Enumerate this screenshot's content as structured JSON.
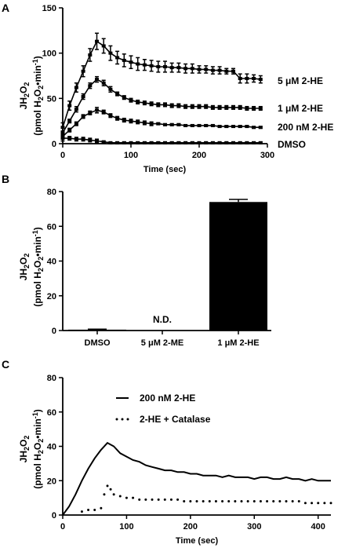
{
  "panels": {
    "A": {
      "letter": "A",
      "ylabel_line1": "JH2O2",
      "ylabel_line2": "(pmol H2O2•min-1)",
      "xlabel": "Time (sec)"
    },
    "B": {
      "letter": "B",
      "ylabel_line1": "JH2O2",
      "ylabel_line2": "(pmol H2O2•min-1)",
      "nd_label": "N.D."
    },
    "C": {
      "letter": "C",
      "ylabel_line1": "JH2O2",
      "ylabel_line2": "(pmol H2O2•min-1)",
      "xlabel": "Time (sec)"
    }
  },
  "chart_data": [
    {
      "panel": "A",
      "type": "line",
      "xlabel": "Time (sec)",
      "ylabel": "JH2O2 (pmol H2O2•min-1)",
      "xlim": [
        0,
        300
      ],
      "ylim": [
        0,
        150
      ],
      "xticks": [
        0,
        100,
        200,
        300
      ],
      "yticks": [
        0,
        50,
        100,
        150
      ],
      "x": [
        0,
        10,
        20,
        30,
        40,
        50,
        60,
        70,
        80,
        90,
        100,
        110,
        120,
        130,
        140,
        150,
        160,
        170,
        180,
        190,
        200,
        210,
        220,
        230,
        240,
        250,
        260,
        270,
        280,
        290
      ],
      "series": [
        {
          "name": "5 μM 2-HE",
          "values": [
            18,
            42,
            62,
            80,
            98,
            113,
            108,
            100,
            95,
            92,
            90,
            88,
            87,
            86,
            85,
            85,
            84,
            84,
            83,
            83,
            82,
            82,
            81,
            81,
            80,
            80,
            72,
            72,
            72,
            71
          ],
          "errors": [
            5,
            5,
            5,
            6,
            7,
            9,
            8,
            8,
            7,
            7,
            7,
            7,
            6,
            6,
            6,
            6,
            5,
            5,
            5,
            5,
            4,
            4,
            4,
            4,
            3,
            3,
            5,
            5,
            4,
            4
          ]
        },
        {
          "name": "1 μM 2-HE",
          "values": [
            12,
            25,
            38,
            52,
            64,
            71,
            67,
            60,
            55,
            51,
            48,
            46,
            45,
            44,
            43,
            43,
            42,
            42,
            41,
            41,
            41,
            41,
            40,
            40,
            40,
            40,
            40,
            39,
            39,
            39
          ],
          "errors": [
            2,
            2,
            3,
            3,
            3,
            3,
            3,
            3,
            2,
            2,
            2,
            2,
            2,
            2,
            2,
            2,
            2,
            2,
            2,
            2,
            2,
            2,
            2,
            2,
            2,
            2,
            2,
            2,
            2,
            2
          ]
        },
        {
          "name": "200 nM 2-HE",
          "values": [
            8,
            15,
            22,
            30,
            34,
            37,
            35,
            31,
            28,
            26,
            25,
            24,
            23,
            22,
            22,
            21,
            21,
            21,
            20,
            20,
            20,
            20,
            20,
            19,
            19,
            19,
            19,
            19,
            18,
            18
          ],
          "errors": [
            2,
            2,
            2,
            2,
            2,
            3,
            2,
            2,
            2,
            2,
            2,
            2,
            2,
            2,
            1,
            1,
            1,
            1,
            1,
            1,
            1,
            1,
            1,
            1,
            1,
            1,
            1,
            1,
            1,
            1
          ]
        },
        {
          "name": "DMSO",
          "values": [
            6,
            6,
            5,
            5,
            4,
            3,
            2,
            1,
            1,
            1,
            1,
            1,
            1,
            1,
            1,
            1,
            1,
            1,
            1,
            1,
            1,
            1,
            1,
            1,
            1,
            1,
            1,
            1,
            1,
            1
          ],
          "errors": [
            3,
            2,
            2,
            2,
            2,
            2,
            1,
            1,
            1,
            1,
            1,
            1,
            1,
            1,
            1,
            1,
            1,
            1,
            1,
            1,
            1,
            1,
            1,
            1,
            1,
            1,
            1,
            1,
            1,
            1
          ]
        }
      ]
    },
    {
      "panel": "B",
      "type": "bar",
      "ylabel": "JH2O2 (pmol H2O2•min-1)",
      "ylim": [
        0,
        80
      ],
      "yticks": [
        0,
        20,
        40,
        60,
        80
      ],
      "categories": [
        "DMSO",
        "5 μM 2-ME",
        "1 μM 2-HE"
      ],
      "values": [
        0.5,
        0,
        74
      ],
      "errors": [
        0.3,
        0,
        1.5
      ],
      "annotations": [
        "",
        "N.D.",
        ""
      ]
    },
    {
      "panel": "C",
      "type": "line",
      "xlabel": "Time (sec)",
      "ylabel": "JH2O2 (pmol H2O2•min-1)",
      "xlim": [
        0,
        420
      ],
      "ylim": [
        0,
        80
      ],
      "xticks": [
        0,
        100,
        200,
        300,
        400
      ],
      "yticks": [
        0,
        20,
        40,
        60,
        80
      ],
      "legend": "top-right",
      "series": [
        {
          "name": "200 nM 2-HE",
          "style": "solid",
          "x": [
            0,
            10,
            20,
            30,
            40,
            50,
            60,
            70,
            80,
            90,
            100,
            110,
            120,
            130,
            140,
            150,
            160,
            170,
            180,
            190,
            200,
            210,
            220,
            230,
            240,
            250,
            260,
            270,
            280,
            290,
            300,
            310,
            320,
            330,
            340,
            350,
            360,
            370,
            380,
            390,
            400,
            410,
            420
          ],
          "values": [
            0,
            5,
            12,
            20,
            27,
            33,
            38,
            42,
            40,
            36,
            34,
            32,
            31,
            29,
            28,
            27,
            26,
            26,
            25,
            25,
            24,
            24,
            23,
            23,
            23,
            22,
            23,
            22,
            22,
            22,
            21,
            22,
            22,
            21,
            21,
            22,
            21,
            21,
            20,
            21,
            20,
            20,
            20
          ]
        },
        {
          "name": "2-HE + Catalase",
          "style": "dotted",
          "x": [
            30,
            40,
            50,
            60,
            65,
            70,
            75,
            80,
            90,
            100,
            110,
            120,
            130,
            140,
            150,
            160,
            170,
            180,
            190,
            200,
            210,
            220,
            230,
            240,
            250,
            260,
            270,
            280,
            290,
            300,
            310,
            320,
            330,
            340,
            350,
            360,
            370,
            380,
            390,
            400,
            410,
            420
          ],
          "values": [
            2,
            3,
            3,
            4,
            12,
            17,
            15,
            12,
            11,
            10,
            10,
            9,
            9,
            9,
            9,
            9,
            9,
            9,
            8,
            8,
            8,
            8,
            8,
            8,
            8,
            8,
            8,
            8,
            8,
            8,
            8,
            8,
            8,
            8,
            8,
            8,
            8,
            7,
            7,
            7,
            7,
            7
          ]
        }
      ]
    }
  ]
}
